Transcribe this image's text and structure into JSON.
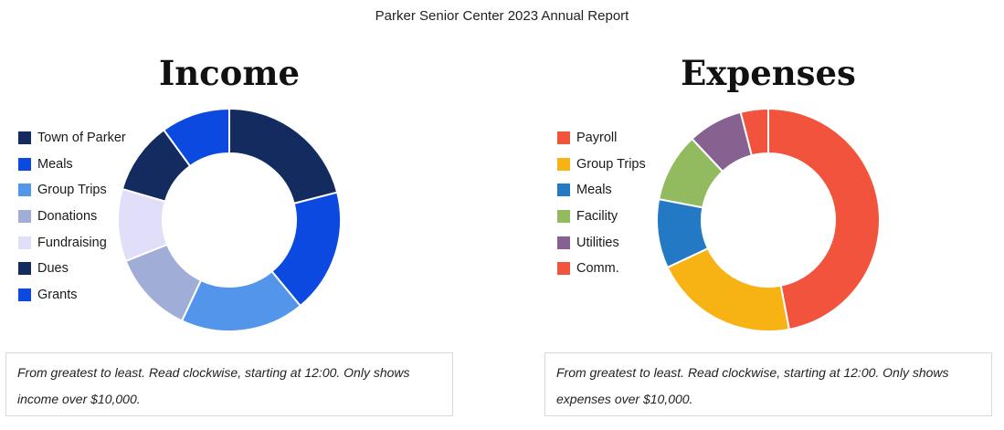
{
  "report_title": "Parker Senior Center 2023 Annual Report",
  "chart_data": [
    {
      "type": "pie",
      "title": "Income",
      "donut": true,
      "start": "12:00",
      "direction": "clockwise",
      "legend_placement": "left",
      "slices": [
        {
          "label": "Town of Parker",
          "value": 21,
          "color": "#132b5f"
        },
        {
          "label": "Meals",
          "value": 18,
          "color": "#0b49e0"
        },
        {
          "label": "Group Trips",
          "value": 18,
          "color": "#5295ea"
        },
        {
          "label": "Donations",
          "value": 12,
          "color": "#a0aed7"
        },
        {
          "label": "Fundraising",
          "value": 10.5,
          "color": "#e1defa"
        },
        {
          "label": "Dues",
          "value": 10.5,
          "color": "#132b5f"
        },
        {
          "label": "Grants",
          "value": 10,
          "color": "#0b49e0"
        }
      ],
      "note": "From greatest to least. Read clockwise, starting at 12:00. Only shows income over $10,000."
    },
    {
      "type": "pie",
      "title": "Expenses",
      "donut": true,
      "start": "12:00",
      "direction": "clockwise",
      "legend_placement": "left",
      "slices": [
        {
          "label": "Payroll",
          "value": 47,
          "color": "#f2533d"
        },
        {
          "label": "Group Trips",
          "value": 21,
          "color": "#f7b314"
        },
        {
          "label": "Meals",
          "value": 10,
          "color": "#2379c4"
        },
        {
          "label": "Facility",
          "value": 10,
          "color": "#91bb5e"
        },
        {
          "label": "Utilities",
          "value": 8,
          "color": "#87618f"
        },
        {
          "label": "Comm.",
          "value": 4,
          "color": "#f2533d"
        }
      ],
      "note": "From greatest to least. Read clockwise, starting at 12:00. Only shows expenses over $10,000."
    }
  ]
}
